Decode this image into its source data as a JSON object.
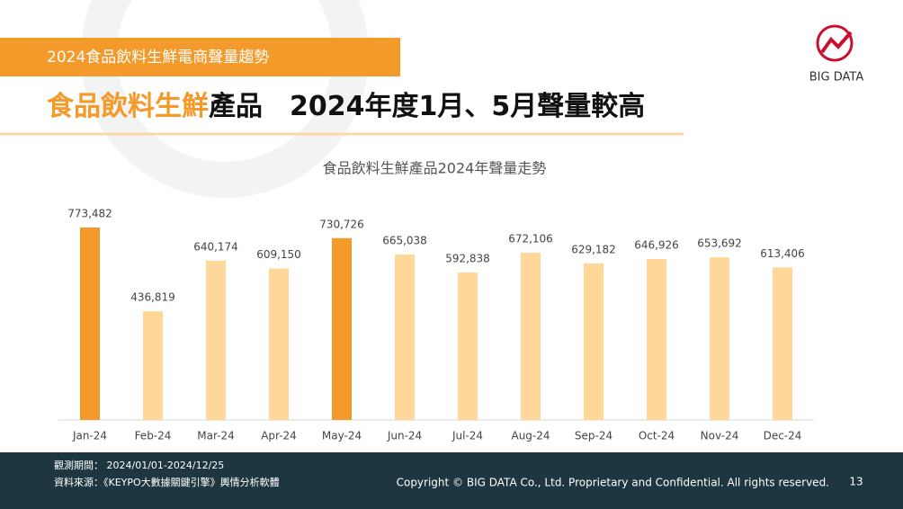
{
  "header": {
    "banner": "2024食品飲料生鮮電商聲量趨勢",
    "title_highlight": "食品飲料生鮮",
    "title_rest": "產品　2024年度1月、5月聲量較高",
    "logo": "BIG DATA"
  },
  "chart_data": {
    "type": "bar",
    "title": "食品飲料生鮮產品2024年聲量走勢",
    "categories": [
      "Jan-24",
      "Feb-24",
      "Mar-24",
      "Apr-24",
      "May-24",
      "Jun-24",
      "Jul-24",
      "Aug-24",
      "Sep-24",
      "Oct-24",
      "Nov-24",
      "Dec-24"
    ],
    "values": [
      773482,
      436819,
      640174,
      609150,
      730726,
      665038,
      592838,
      672106,
      629182,
      646926,
      653692,
      613406
    ],
    "value_labels": [
      "773,482",
      "436,819",
      "640,174",
      "609,150",
      "730,726",
      "665,038",
      "592,838",
      "672,106",
      "629,182",
      "646,926",
      "653,692",
      "613,406"
    ],
    "colors": [
      "#f39a2b",
      "#ffd899",
      "#ffd899",
      "#ffd899",
      "#f39a2b",
      "#ffd899",
      "#ffd899",
      "#ffd899",
      "#ffd899",
      "#ffd899",
      "#ffd899",
      "#ffd899"
    ],
    "ylim": [
      0,
      900000
    ]
  },
  "footer": {
    "period": "觀測期間： 2024/01/01-2024/12/25",
    "source": "資料來源：《KEYPO大數據關鍵引擎》輿情分析軟體",
    "copyright": "Copyright © BIG DATA Co., Ltd. Proprietary and Confidential. All rights reserved.",
    "page": "13"
  }
}
